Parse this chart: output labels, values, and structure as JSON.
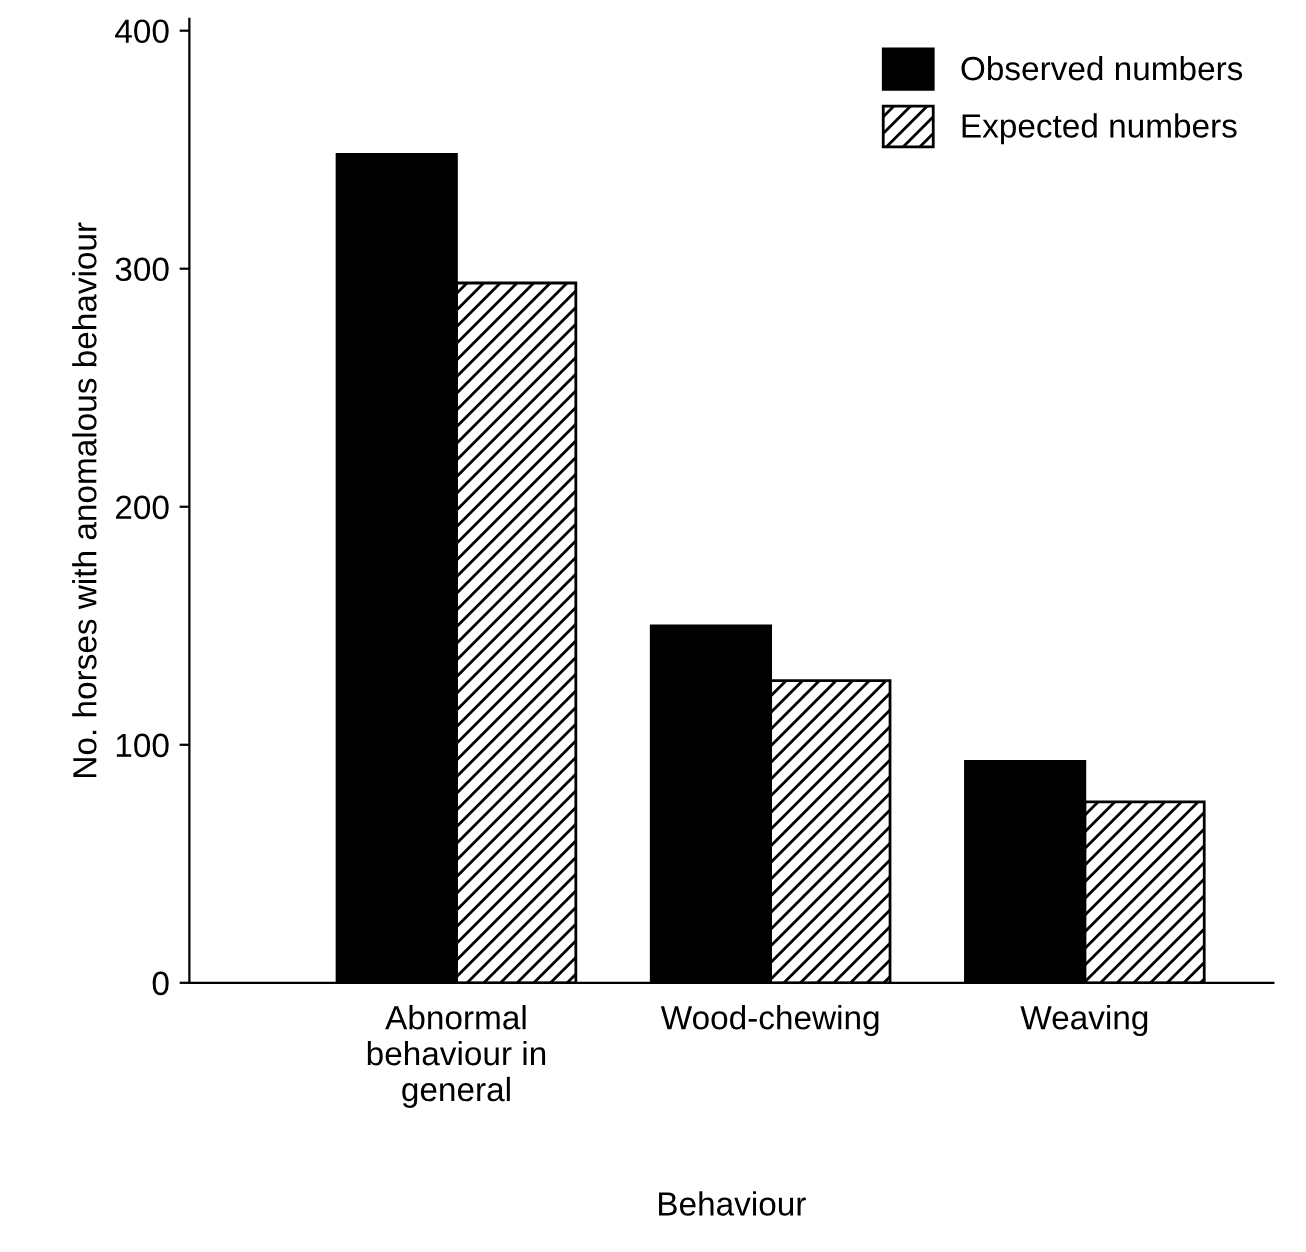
{
  "chart_data": {
    "type": "bar",
    "xlabel": "Behaviour",
    "ylabel": "No. horses with anomalous behaviour",
    "categories": [
      "Abnormal\nbehaviour in\ngeneral",
      "Wood-chewing",
      "Weaving"
    ],
    "series": [
      {
        "name": "Observed numbers",
        "color": "#000000",
        "values": [
          348,
          150,
          93
        ]
      },
      {
        "name": "Expected numbers",
        "color": "#000000",
        "values": [
          294,
          127,
          76
        ]
      }
    ],
    "ylim": [
      0,
      405
    ],
    "yticks": [
      0,
      100,
      200,
      300,
      400
    ],
    "grid": false,
    "legend": "top right"
  }
}
